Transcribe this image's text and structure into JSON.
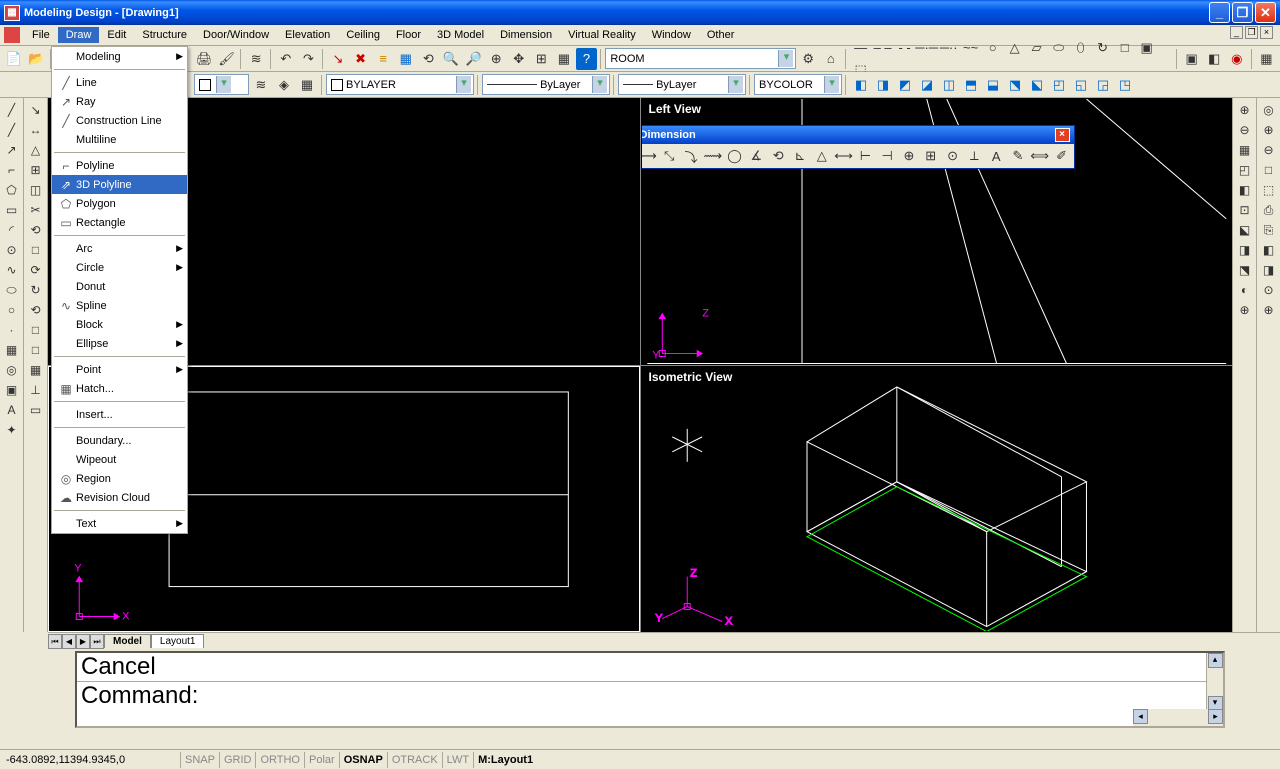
{
  "title": "Modeling Design  - [Drawing1]",
  "menus": [
    "File",
    "Draw",
    "Edit",
    "Structure",
    "Door/Window",
    "Elevation",
    "Ceiling",
    "Floor",
    "3D Model",
    "Dimension",
    "Virtual Reality",
    "Window",
    "Other"
  ],
  "open_menu_index": 1,
  "drawMenu": [
    {
      "t": "item",
      "label": "Modeling",
      "arrow": true,
      "ico": ""
    },
    {
      "t": "sep"
    },
    {
      "t": "item",
      "label": "Line",
      "ico": "╱"
    },
    {
      "t": "item",
      "label": "Ray",
      "ico": "↗"
    },
    {
      "t": "item",
      "label": "Construction Line",
      "ico": "╱"
    },
    {
      "t": "item",
      "label": "Multiline",
      "ico": ""
    },
    {
      "t": "sep"
    },
    {
      "t": "item",
      "label": "Polyline",
      "ico": "⌐"
    },
    {
      "t": "item",
      "label": "3D Polyline",
      "ico": "⇗",
      "hl": true
    },
    {
      "t": "item",
      "label": "Polygon",
      "ico": "⬠"
    },
    {
      "t": "item",
      "label": "Rectangle",
      "ico": "▭"
    },
    {
      "t": "sep"
    },
    {
      "t": "item",
      "label": "Arc",
      "arrow": true,
      "ico": ""
    },
    {
      "t": "item",
      "label": "Circle",
      "arrow": true,
      "ico": ""
    },
    {
      "t": "item",
      "label": "Donut",
      "ico": ""
    },
    {
      "t": "item",
      "label": "Spline",
      "ico": "∿"
    },
    {
      "t": "item",
      "label": "Block",
      "arrow": true,
      "ico": ""
    },
    {
      "t": "item",
      "label": "Ellipse",
      "arrow": true,
      "ico": ""
    },
    {
      "t": "sep"
    },
    {
      "t": "item",
      "label": "Point",
      "arrow": true,
      "ico": ""
    },
    {
      "t": "item",
      "label": "Hatch...",
      "ico": "▦"
    },
    {
      "t": "sep"
    },
    {
      "t": "item",
      "label": "Insert...",
      "ico": ""
    },
    {
      "t": "sep"
    },
    {
      "t": "item",
      "label": "Boundary...",
      "ico": ""
    },
    {
      "t": "item",
      "label": "Wipeout",
      "ico": ""
    },
    {
      "t": "item",
      "label": "Region",
      "ico": "◎"
    },
    {
      "t": "item",
      "label": "Revision Cloud",
      "ico": "☁"
    },
    {
      "t": "sep"
    },
    {
      "t": "item",
      "label": "Text",
      "arrow": true,
      "ico": ""
    }
  ],
  "toolbar1": {
    "combo1": "ROOM",
    "linetype_icons": [
      "—",
      "– –",
      "- -",
      "─·─",
      "─··",
      "~~",
      "○",
      "△",
      "▱",
      "⬭",
      "⬯",
      "↻",
      "□",
      "▣",
      "⬚"
    ]
  },
  "toolbar2": {
    "layer_combo": "BYLAYER",
    "ltype_combo": "ByLayer",
    "lw_combo": "ByLayer",
    "color_combo": "BYCOLOR",
    "cube_icons": [
      "◧",
      "◨",
      "◩",
      "◪",
      "◫",
      "⬒",
      "⬓",
      "⬔",
      "⬕",
      "◰",
      "◱",
      "◲",
      "◳"
    ]
  },
  "viewports": {
    "tl": "",
    "tr": "Left View",
    "bl": "",
    "br": "Isometric View"
  },
  "dimToolbar": {
    "title": "Dimension",
    "icons": [
      "⟼",
      "⤡",
      "⤵",
      "⟿",
      "◯",
      "∡",
      "⟲",
      "⊾",
      "△",
      "⟷",
      "⊢",
      "⊣",
      "⊕",
      "⊞",
      "⊙",
      "⟂",
      "A",
      "✎",
      "⟺",
      "✐"
    ]
  },
  "leftTools": [
    "╱",
    "╱",
    "↗",
    "⌐",
    "⬠",
    "▭",
    "◜",
    "⊙",
    "∿",
    "⬭",
    "○",
    "·",
    "▦",
    "◎",
    "▣",
    "A",
    "✦"
  ],
  "leftTools2": [
    "↘",
    "↔",
    "△",
    "⊞",
    "◫",
    "✂",
    "⟲",
    "□",
    "⟳",
    "↻",
    "⟲",
    "□",
    "□",
    "▦",
    "⊥",
    "▭"
  ],
  "rightTools": [
    "⊕",
    "⊖",
    "▦",
    "◰",
    "◧",
    "⊡",
    "⬕",
    "◨",
    "⬔",
    "◐",
    "⊕"
  ],
  "rightTools2": [
    "◎",
    "⊕",
    "⊖",
    "□",
    "⬚",
    "⎙",
    "⎘",
    "◧",
    "◨",
    "⊙",
    "⊕"
  ],
  "tabs": {
    "items": [
      "Model",
      "Layout1"
    ],
    "active": 0
  },
  "cmd": {
    "line1": "Cancel",
    "line2": "Command:"
  },
  "status": {
    "coord": "-643.0892,11394.9345,0",
    "items": [
      {
        "l": "SNAP",
        "on": false
      },
      {
        "l": "GRID",
        "on": false
      },
      {
        "l": "ORTHO",
        "on": false
      },
      {
        "l": "Polar",
        "on": false
      },
      {
        "l": "OSNAP",
        "on": true
      },
      {
        "l": "OTRACK",
        "on": false
      },
      {
        "l": "LWT",
        "on": false
      },
      {
        "l": "M:Layout1",
        "on": true
      }
    ]
  },
  "colors": {
    "titlebar": "#0058e6",
    "highlight": "#316ac5",
    "panel": "#ece9d8",
    "viewport_bg": "#000000",
    "ucs_color": "#ff00ff",
    "geom_color": "#ffffff",
    "accent_green": "#00ff00"
  }
}
